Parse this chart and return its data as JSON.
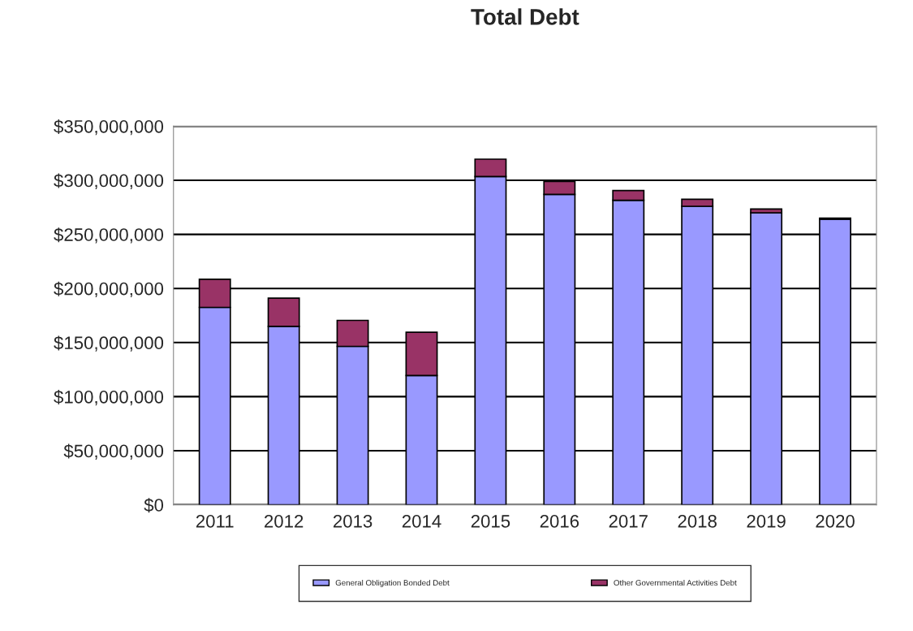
{
  "chart_data": {
    "type": "bar",
    "title": "Total Debt",
    "stacked": true,
    "categories": [
      "2011",
      "2012",
      "2013",
      "2014",
      "2015",
      "2016",
      "2017",
      "2018",
      "2019",
      "2020"
    ],
    "series": [
      {
        "name": "General Obligation Bonded Debt",
        "color": "#9999ff",
        "values": [
          182500000,
          165000000,
          146500000,
          119500000,
          303500000,
          287000000,
          281500000,
          276000000,
          270000000,
          264000000
        ]
      },
      {
        "name": "Other Governmental Activities Debt",
        "color": "#993366",
        "values": [
          26000000,
          26000000,
          24000000,
          40000000,
          16000000,
          12000000,
          9000000,
          6500000,
          3500000,
          1000000
        ]
      }
    ],
    "ylim": [
      0,
      350000000
    ],
    "yticks": [
      {
        "value": 0,
        "label": "$0"
      },
      {
        "value": 50000000,
        "label": "$50,000,000"
      },
      {
        "value": 100000000,
        "label": "$100,000,000"
      },
      {
        "value": 150000000,
        "label": "$150,000,000"
      },
      {
        "value": 200000000,
        "label": "$200,000,000"
      },
      {
        "value": 250000000,
        "label": "$250,000,000"
      },
      {
        "value": 300000000,
        "label": "$300,000,000"
      },
      {
        "value": 350000000,
        "label": "$350,000,000"
      }
    ],
    "grid": "y",
    "legend": "bottom"
  }
}
